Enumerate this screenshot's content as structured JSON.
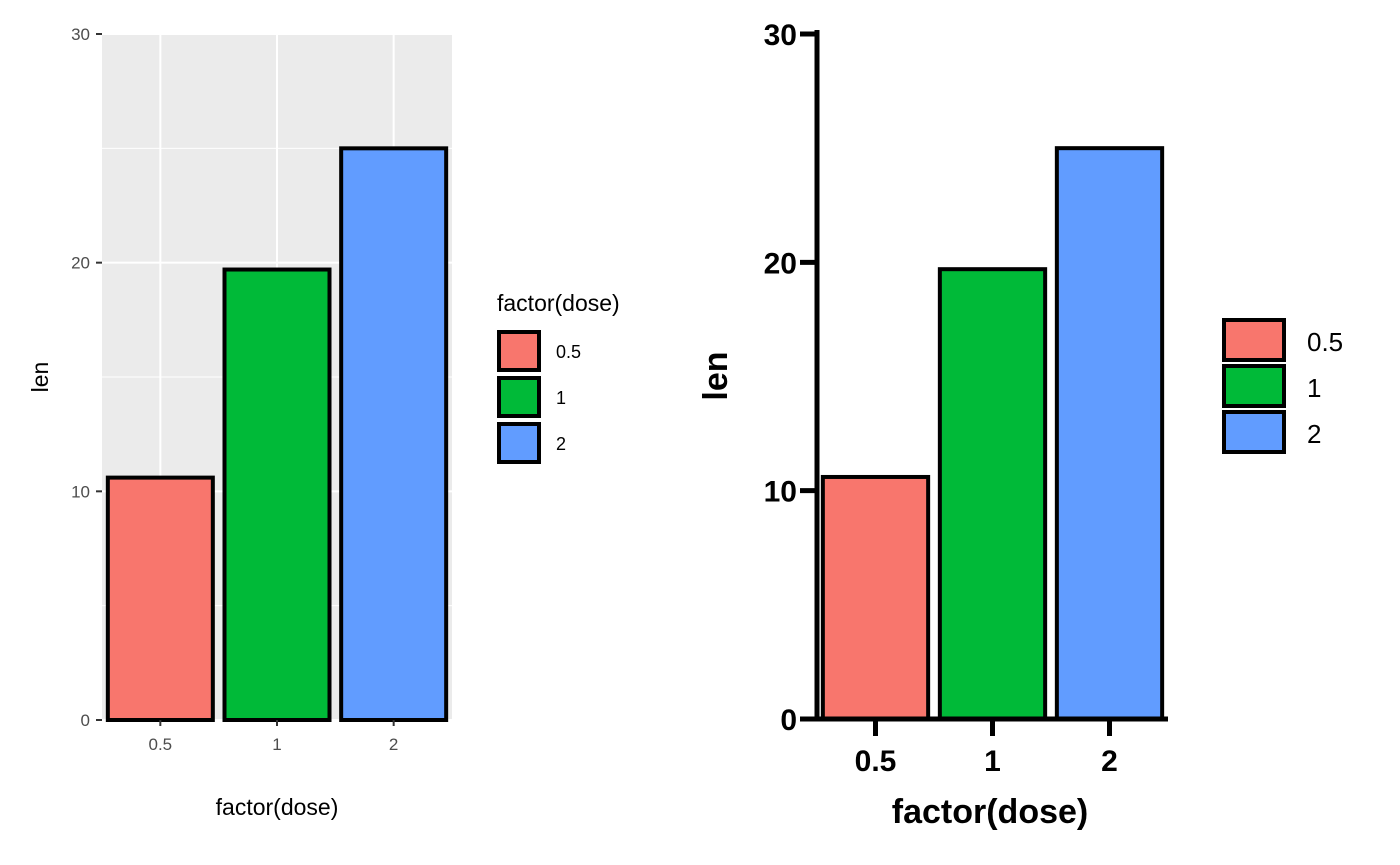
{
  "chart_data": [
    {
      "type": "bar",
      "theme": "ggplot-grey",
      "categories": [
        "0.5",
        "1",
        "2"
      ],
      "values": [
        10.6,
        19.7,
        25.0
      ],
      "colors": [
        "#F8766D",
        "#00BA38",
        "#619CFF"
      ],
      "bar_outline": "#000000",
      "panel_background": "#EBEBEB",
      "grid": true,
      "title": "",
      "xlabel": "factor(dose)",
      "ylabel": "len",
      "ylim": [
        0,
        30
      ],
      "yticks": [
        "0",
        "10",
        "20",
        "30"
      ],
      "legend": {
        "title": "factor(dose)",
        "position": "right",
        "entries": [
          "0.5",
          "1",
          "2"
        ]
      }
    },
    {
      "type": "bar",
      "theme": "classic-bold",
      "categories": [
        "0.5",
        "1",
        "2"
      ],
      "values": [
        10.6,
        19.7,
        25.0
      ],
      "colors": [
        "#F8766D",
        "#00BA38",
        "#619CFF"
      ],
      "bar_outline": "#000000",
      "grid": false,
      "title": "",
      "xlabel": "factor(dose)",
      "ylabel": "len",
      "ylim": [
        0,
        30
      ],
      "yticks": [
        "0",
        "10",
        "20",
        "30"
      ],
      "legend": {
        "title": "",
        "position": "right",
        "entries": [
          "0.5",
          "1",
          "2"
        ]
      }
    }
  ]
}
